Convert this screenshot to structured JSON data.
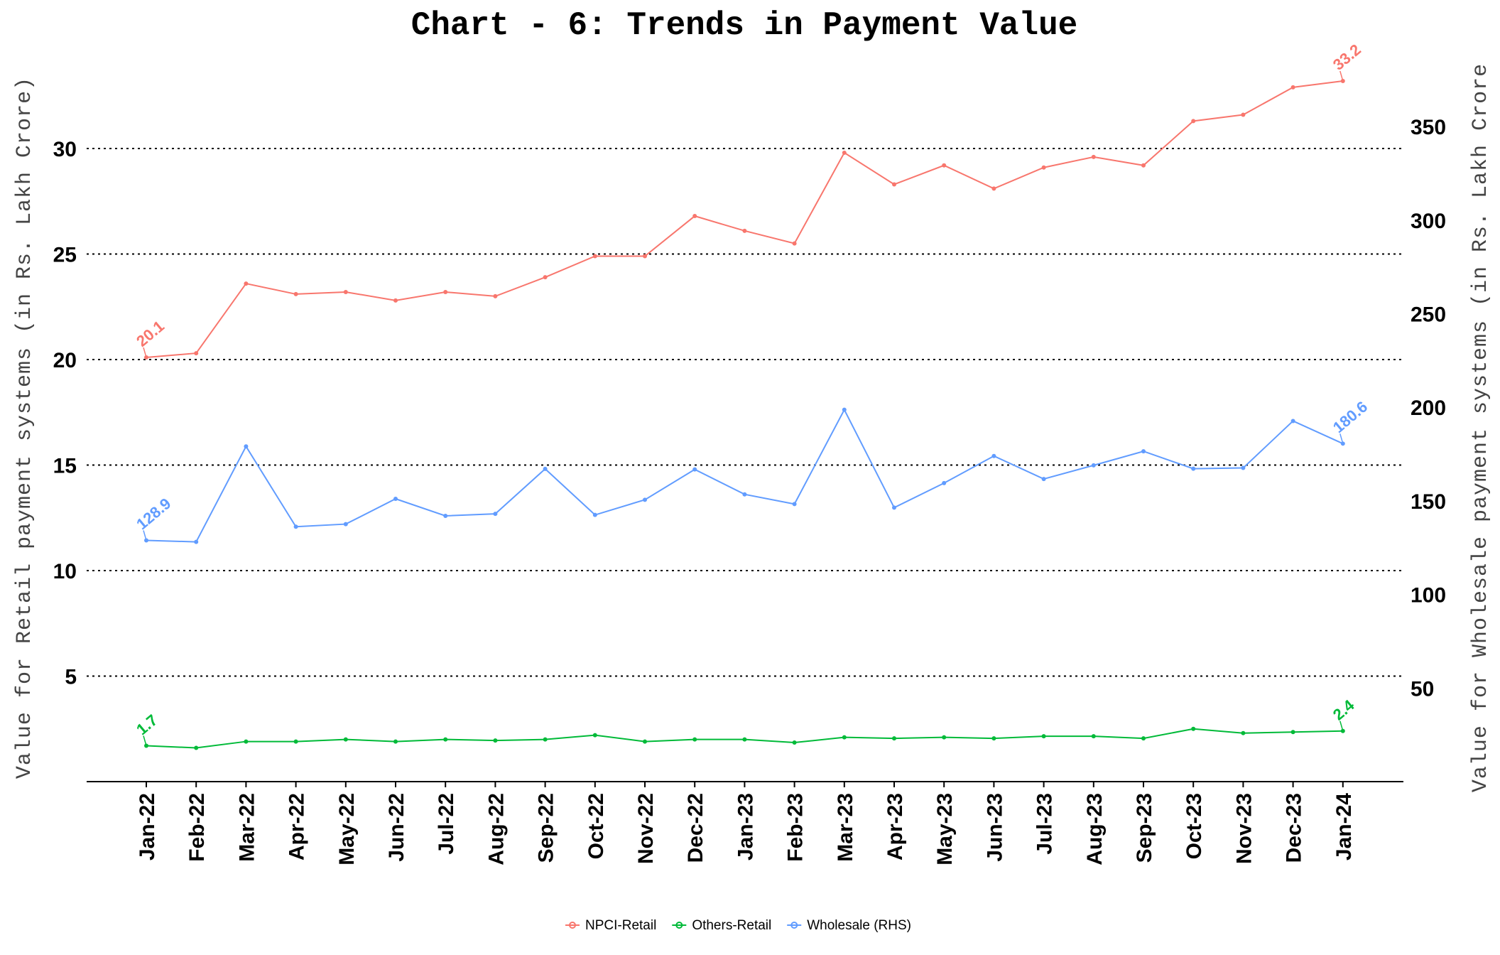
{
  "chart_data": {
    "type": "line",
    "title": "Chart - 6: Trends in Payment Value",
    "ylabel": "Value for Retail payment systems (in Rs. Lakh Crore)",
    "y2label": "Value for Wholesale payment systems (in Rs. Lakh Crore",
    "ylim": [
      0,
      33.7
    ],
    "y2lim": [
      0,
      380
    ],
    "yticks": [
      "5",
      "10",
      "15",
      "20",
      "25",
      "30"
    ],
    "y2ticks": [
      "50",
      "100",
      "150",
      "200",
      "250",
      "300",
      "350"
    ],
    "grid": "horizontal dotted",
    "legend_position": "bottom",
    "categories": [
      "Jan-22",
      "Feb-22",
      "Mar-22",
      "Apr-22",
      "May-22",
      "Jun-22",
      "Jul-22",
      "Aug-22",
      "Sep-22",
      "Oct-22",
      "Nov-22",
      "Dec-22",
      "Jan-23",
      "Feb-23",
      "Mar-23",
      "Apr-23",
      "May-23",
      "Jun-23",
      "Jul-23",
      "Aug-23",
      "Sep-23",
      "Oct-23",
      "Nov-23",
      "Dec-23",
      "Jan-24"
    ],
    "series": [
      {
        "name": "NPCI-Retail",
        "axis": "left",
        "color": "#f8766d",
        "values": [
          20.1,
          20.3,
          23.6,
          23.1,
          23.2,
          22.8,
          23.2,
          23.0,
          23.9,
          24.9,
          24.9,
          26.8,
          26.1,
          25.5,
          29.8,
          28.3,
          29.2,
          28.1,
          29.1,
          29.6,
          29.2,
          31.3,
          31.6,
          32.9,
          33.2
        ],
        "first_label": "20.1",
        "last_label": "33.2"
      },
      {
        "name": "Others-Retail",
        "axis": "left",
        "color": "#00ba38",
        "values": [
          1.7,
          1.6,
          1.9,
          1.9,
          2.0,
          1.9,
          2.0,
          1.95,
          2.0,
          2.2,
          1.9,
          2.0,
          2.0,
          1.85,
          2.1,
          2.05,
          2.1,
          2.05,
          2.15,
          2.15,
          2.05,
          2.5,
          2.3,
          2.35,
          2.4
        ],
        "first_label": "1.7",
        "last_label": "2.4"
      },
      {
        "name": "Wholesale (RHS)",
        "axis": "right",
        "color": "#619cff",
        "values": [
          128.9,
          128.1,
          179.1,
          136.2,
          137.6,
          151.1,
          142.0,
          143.1,
          167.1,
          142.5,
          150.6,
          166.8,
          153.5,
          148.3,
          198.7,
          146.4,
          159.5,
          174.0,
          161.7,
          169.0,
          176.5,
          167.2,
          167.6,
          192.7,
          180.6
        ],
        "first_label": "128.9",
        "last_label": "180.6"
      }
    ]
  }
}
